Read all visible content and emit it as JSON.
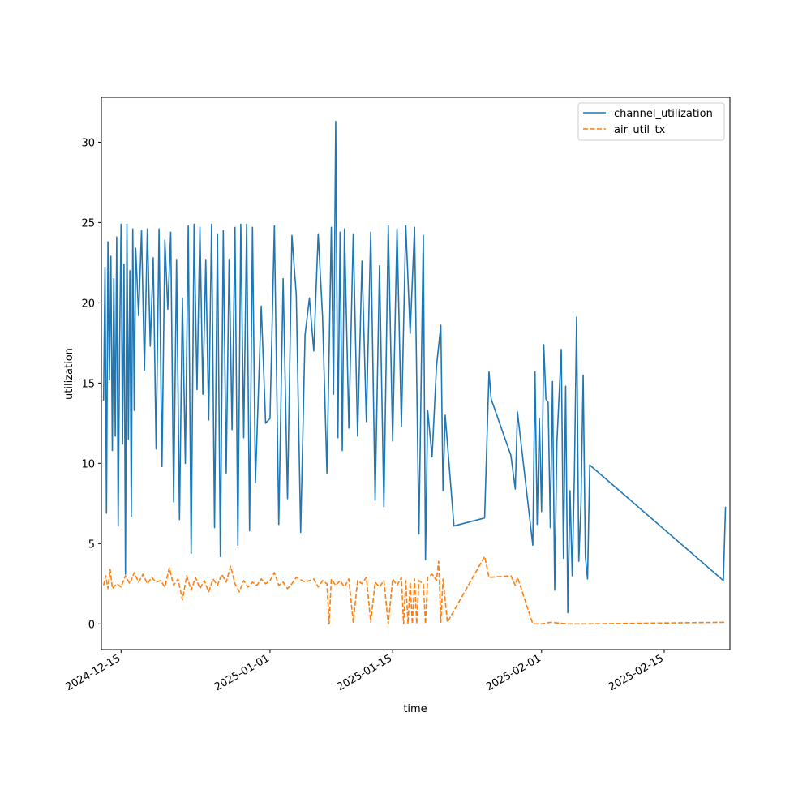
{
  "chart_data": {
    "type": "line",
    "xlabel": "time",
    "ylabel": "utilization",
    "x_axis_type": "date",
    "xlim": [
      "2024-12-12T18:00",
      "2025-02-22T12:00"
    ],
    "ylim": [
      -1.6,
      32.8
    ],
    "x_ticks": [
      "2024-12-15",
      "2025-01-01",
      "2025-01-15",
      "2025-02-01",
      "2025-02-15"
    ],
    "y_ticks": [
      0,
      5,
      10,
      15,
      20,
      25,
      30
    ],
    "grid": false,
    "legend_position": "top-right",
    "series": [
      {
        "name": "channel_utilization",
        "color": "#1f77b4",
        "style": "solid",
        "points": [
          [
            "2024-12-13T00:00",
            13.9
          ],
          [
            "2024-12-13T04:00",
            22.2
          ],
          [
            "2024-12-13T08:00",
            6.9
          ],
          [
            "2024-12-13T12:00",
            23.8
          ],
          [
            "2024-12-13T16:00",
            15.2
          ],
          [
            "2024-12-13T20:00",
            22.9
          ],
          [
            "2024-12-14T00:00",
            10.8
          ],
          [
            "2024-12-14T04:00",
            21.5
          ],
          [
            "2024-12-14T08:00",
            11.7
          ],
          [
            "2024-12-14T12:00",
            24.1
          ],
          [
            "2024-12-14T16:00",
            6.1
          ],
          [
            "2024-12-14T20:00",
            17.5
          ],
          [
            "2024-12-15T00:00",
            24.9
          ],
          [
            "2024-12-15T04:00",
            11.2
          ],
          [
            "2024-12-15T08:00",
            22.4
          ],
          [
            "2024-12-15T12:00",
            3.1
          ],
          [
            "2024-12-15T16:00",
            24.9
          ],
          [
            "2024-12-15T20:00",
            11.5
          ],
          [
            "2024-12-16T00:00",
            22.0
          ],
          [
            "2024-12-16T04:00",
            6.7
          ],
          [
            "2024-12-16T08:00",
            24.6
          ],
          [
            "2024-12-16T12:00",
            13.3
          ],
          [
            "2024-12-16T16:00",
            23.4
          ],
          [
            "2024-12-17T00:00",
            19.2
          ],
          [
            "2024-12-17T08:00",
            24.5
          ],
          [
            "2024-12-17T16:00",
            15.8
          ],
          [
            "2024-12-18T00:00",
            24.6
          ],
          [
            "2024-12-18T08:00",
            17.3
          ],
          [
            "2024-12-18T16:00",
            22.8
          ],
          [
            "2024-12-19T00:00",
            10.9
          ],
          [
            "2024-12-19T08:00",
            24.6
          ],
          [
            "2024-12-19T16:00",
            9.8
          ],
          [
            "2024-12-20T00:00",
            23.9
          ],
          [
            "2024-12-20T08:00",
            19.6
          ],
          [
            "2024-12-20T16:00",
            24.4
          ],
          [
            "2024-12-21T00:00",
            7.6
          ],
          [
            "2024-12-21T08:00",
            22.7
          ],
          [
            "2024-12-21T16:00",
            6.5
          ],
          [
            "2024-12-22T00:00",
            20.3
          ],
          [
            "2024-12-22T08:00",
            10.0
          ],
          [
            "2024-12-22T16:00",
            24.8
          ],
          [
            "2024-12-23T00:00",
            4.4
          ],
          [
            "2024-12-23T08:00",
            24.9
          ],
          [
            "2024-12-23T16:00",
            14.6
          ],
          [
            "2024-12-24T00:00",
            24.7
          ],
          [
            "2024-12-24T08:00",
            14.3
          ],
          [
            "2024-12-24T16:00",
            22.7
          ],
          [
            "2024-12-25T00:00",
            12.7
          ],
          [
            "2024-12-25T08:00",
            24.9
          ],
          [
            "2024-12-25T16:00",
            6.0
          ],
          [
            "2024-12-26T00:00",
            24.3
          ],
          [
            "2024-12-26T08:00",
            4.2
          ],
          [
            "2024-12-26T16:00",
            24.5
          ],
          [
            "2024-12-27T00:00",
            9.4
          ],
          [
            "2024-12-27T08:00",
            22.7
          ],
          [
            "2024-12-27T16:00",
            12.1
          ],
          [
            "2024-12-28T00:00",
            24.7
          ],
          [
            "2024-12-28T08:00",
            4.9
          ],
          [
            "2024-12-28T16:00",
            24.9
          ],
          [
            "2024-12-29T00:00",
            11.6
          ],
          [
            "2024-12-29T08:00",
            24.9
          ],
          [
            "2024-12-29T16:00",
            5.8
          ],
          [
            "2024-12-30T00:00",
            24.7
          ],
          [
            "2024-12-30T08:00",
            8.8
          ],
          [
            "2024-12-31T00:00",
            19.8
          ],
          [
            "2024-12-31T12:00",
            12.5
          ],
          [
            "2025-01-01T00:00",
            12.8
          ],
          [
            "2025-01-01T12:00",
            24.8
          ],
          [
            "2025-01-02T00:00",
            6.2
          ],
          [
            "2025-01-02T12:00",
            21.5
          ],
          [
            "2025-01-03T00:00",
            7.8
          ],
          [
            "2025-01-03T12:00",
            24.2
          ],
          [
            "2025-01-04T00:00",
            20.5
          ],
          [
            "2025-01-04T12:00",
            5.7
          ],
          [
            "2025-01-05T00:00",
            18.0
          ],
          [
            "2025-01-05T12:00",
            20.3
          ],
          [
            "2025-01-06T00:00",
            17.0
          ],
          [
            "2025-01-06T12:00",
            24.3
          ],
          [
            "2025-01-07T00:00",
            19.1
          ],
          [
            "2025-01-07T12:00",
            9.4
          ],
          [
            "2025-01-08T00:00",
            24.7
          ],
          [
            "2025-01-08T06:00",
            14.3
          ],
          [
            "2025-01-08T12:00",
            31.3
          ],
          [
            "2025-01-08T18:00",
            11.6
          ],
          [
            "2025-01-09T00:00",
            24.4
          ],
          [
            "2025-01-09T06:00",
            10.8
          ],
          [
            "2025-01-09T12:00",
            24.6
          ],
          [
            "2025-01-10T00:00",
            12.2
          ],
          [
            "2025-01-10T12:00",
            24.3
          ],
          [
            "2025-01-11T00:00",
            11.7
          ],
          [
            "2025-01-11T12:00",
            22.6
          ],
          [
            "2025-01-12T00:00",
            12.6
          ],
          [
            "2025-01-12T12:00",
            24.4
          ],
          [
            "2025-01-13T00:00",
            7.7
          ],
          [
            "2025-01-13T12:00",
            22.3
          ],
          [
            "2025-01-14T00:00",
            7.3
          ],
          [
            "2025-01-14T12:00",
            24.8
          ],
          [
            "2025-01-15T00:00",
            11.4
          ],
          [
            "2025-01-15T12:00",
            24.6
          ],
          [
            "2025-01-16T00:00",
            12.3
          ],
          [
            "2025-01-16T12:00",
            24.8
          ],
          [
            "2025-01-17T00:00",
            18.1
          ],
          [
            "2025-01-17T12:00",
            24.7
          ],
          [
            "2025-01-18T00:00",
            5.6
          ],
          [
            "2025-01-18T12:00",
            24.2
          ],
          [
            "2025-01-18T18:00",
            4.0
          ],
          [
            "2025-01-19T00:00",
            13.3
          ],
          [
            "2025-01-19T12:00",
            10.4
          ],
          [
            "2025-01-20T00:00",
            16.0
          ],
          [
            "2025-01-20T12:00",
            18.6
          ],
          [
            "2025-01-20T18:00",
            8.3
          ],
          [
            "2025-01-21T00:00",
            13.0
          ],
          [
            "2025-01-22T00:00",
            6.1
          ],
          [
            "2025-01-25T12:00",
            6.6
          ],
          [
            "2025-01-26T00:00",
            15.7
          ],
          [
            "2025-01-26T06:00",
            14.0
          ],
          [
            "2025-01-28T12:00",
            10.5
          ],
          [
            "2025-01-29T00:00",
            8.4
          ],
          [
            "2025-01-29T06:00",
            13.2
          ],
          [
            "2025-01-31T00:00",
            4.9
          ],
          [
            "2025-01-31T06:00",
            15.7
          ],
          [
            "2025-01-31T12:00",
            6.2
          ],
          [
            "2025-01-31T18:00",
            12.8
          ],
          [
            "2025-02-01T00:00",
            7.0
          ],
          [
            "2025-02-01T06:00",
            17.4
          ],
          [
            "2025-02-01T12:00",
            14.0
          ],
          [
            "2025-02-01T18:00",
            13.8
          ],
          [
            "2025-02-02T00:00",
            6.0
          ],
          [
            "2025-02-02T06:00",
            15.1
          ],
          [
            "2025-02-02T12:00",
            2.1
          ],
          [
            "2025-02-02T18:00",
            11.3
          ],
          [
            "2025-02-03T06:00",
            17.1
          ],
          [
            "2025-02-03T12:00",
            4.1
          ],
          [
            "2025-02-03T18:00",
            14.8
          ],
          [
            "2025-02-04T00:00",
            0.7
          ],
          [
            "2025-02-04T06:00",
            8.3
          ],
          [
            "2025-02-04T12:00",
            3.0
          ],
          [
            "2025-02-04T18:00",
            9.4
          ],
          [
            "2025-02-05T00:00",
            19.1
          ],
          [
            "2025-02-05T06:00",
            3.9
          ],
          [
            "2025-02-05T12:00",
            7.5
          ],
          [
            "2025-02-05T18:00",
            15.5
          ],
          [
            "2025-02-06T00:00",
            4.2
          ],
          [
            "2025-02-06T06:00",
            2.8
          ],
          [
            "2025-02-06T12:00",
            9.9
          ],
          [
            "2025-02-21T18:00",
            2.7
          ],
          [
            "2025-02-22T00:00",
            7.3
          ]
        ]
      },
      {
        "name": "air_util_tx",
        "color": "#ff7f0e",
        "style": "dashed",
        "points": [
          [
            "2024-12-13T00:00",
            2.4
          ],
          [
            "2024-12-13T06:00",
            3.0
          ],
          [
            "2024-12-13T12:00",
            2.2
          ],
          [
            "2024-12-13T18:00",
            3.4
          ],
          [
            "2024-12-14T00:00",
            2.2
          ],
          [
            "2024-12-14T12:00",
            2.5
          ],
          [
            "2024-12-15T00:00",
            2.3
          ],
          [
            "2024-12-15T12:00",
            3.0
          ],
          [
            "2024-12-16T00:00",
            2.5
          ],
          [
            "2024-12-16T12:00",
            3.2
          ],
          [
            "2024-12-17T00:00",
            2.6
          ],
          [
            "2024-12-17T12:00",
            3.1
          ],
          [
            "2024-12-18T00:00",
            2.5
          ],
          [
            "2024-12-18T12:00",
            2.9
          ],
          [
            "2024-12-19T00:00",
            2.6
          ],
          [
            "2024-12-19T12:00",
            2.7
          ],
          [
            "2024-12-20T00:00",
            2.3
          ],
          [
            "2024-12-20T12:00",
            3.5
          ],
          [
            "2024-12-21T00:00",
            2.4
          ],
          [
            "2024-12-21T12:00",
            2.8
          ],
          [
            "2024-12-22T00:00",
            1.5
          ],
          [
            "2024-12-22T12:00",
            3.0
          ],
          [
            "2024-12-23T00:00",
            2.1
          ],
          [
            "2024-12-23T12:00",
            2.9
          ],
          [
            "2024-12-24T00:00",
            2.2
          ],
          [
            "2024-12-24T12:00",
            2.7
          ],
          [
            "2024-12-25T00:00",
            2.0
          ],
          [
            "2024-12-25T12:00",
            2.8
          ],
          [
            "2024-12-26T00:00",
            2.4
          ],
          [
            "2024-12-26T12:00",
            3.1
          ],
          [
            "2024-12-27T00:00",
            2.6
          ],
          [
            "2024-12-27T12:00",
            3.6
          ],
          [
            "2024-12-28T00:00",
            2.5
          ],
          [
            "2024-12-28T12:00",
            2.0
          ],
          [
            "2024-12-29T00:00",
            2.7
          ],
          [
            "2024-12-29T12:00",
            2.3
          ],
          [
            "2024-12-30T00:00",
            2.6
          ],
          [
            "2024-12-30T12:00",
            2.4
          ],
          [
            "2024-12-31T00:00",
            2.8
          ],
          [
            "2024-12-31T12:00",
            2.5
          ],
          [
            "2025-01-01T00:00",
            2.7
          ],
          [
            "2025-01-01T12:00",
            3.2
          ],
          [
            "2025-01-02T00:00",
            2.4
          ],
          [
            "2025-01-02T12:00",
            2.6
          ],
          [
            "2025-01-03T00:00",
            2.2
          ],
          [
            "2025-01-03T12:00",
            2.5
          ],
          [
            "2025-01-04T00:00",
            2.9
          ],
          [
            "2025-01-05T00:00",
            2.6
          ],
          [
            "2025-01-06T00:00",
            2.8
          ],
          [
            "2025-01-06T12:00",
            2.3
          ],
          [
            "2025-01-07T00:00",
            2.7
          ],
          [
            "2025-01-07T12:00",
            2.5
          ],
          [
            "2025-01-07T18:00",
            0.0
          ],
          [
            "2025-01-08T00:00",
            2.8
          ],
          [
            "2025-01-08T12:00",
            2.4
          ],
          [
            "2025-01-09T00:00",
            2.7
          ],
          [
            "2025-01-09T12:00",
            2.3
          ],
          [
            "2025-01-10T00:00",
            2.8
          ],
          [
            "2025-01-10T12:00",
            0.1
          ],
          [
            "2025-01-11T00:00",
            2.7
          ],
          [
            "2025-01-11T12:00",
            2.5
          ],
          [
            "2025-01-12T00:00",
            2.9
          ],
          [
            "2025-01-12T12:00",
            0.1
          ],
          [
            "2025-01-13T00:00",
            2.6
          ],
          [
            "2025-01-13T12:00",
            2.3
          ],
          [
            "2025-01-14T00:00",
            2.7
          ],
          [
            "2025-01-14T12:00",
            0.0
          ],
          [
            "2025-01-15T00:00",
            2.8
          ],
          [
            "2025-01-15T12:00",
            2.4
          ],
          [
            "2025-01-16T00:00",
            2.9
          ],
          [
            "2025-01-16T06:00",
            0.0
          ],
          [
            "2025-01-16T12:00",
            2.7
          ],
          [
            "2025-01-16T18:00",
            0.0
          ],
          [
            "2025-01-17T00:00",
            2.6
          ],
          [
            "2025-01-17T06:00",
            0.0
          ],
          [
            "2025-01-17T12:00",
            2.8
          ],
          [
            "2025-01-17T18:00",
            0.0
          ],
          [
            "2025-01-18T00:00",
            2.7
          ],
          [
            "2025-01-18T12:00",
            2.5
          ],
          [
            "2025-01-18T18:00",
            0.0
          ],
          [
            "2025-01-19T00:00",
            2.9
          ],
          [
            "2025-01-19T12:00",
            3.1
          ],
          [
            "2025-01-20T00:00",
            2.7
          ],
          [
            "2025-01-20T06:00",
            3.9
          ],
          [
            "2025-01-20T12:00",
            0.1
          ],
          [
            "2025-01-20T18:00",
            2.8
          ],
          [
            "2025-01-21T06:00",
            0.1
          ],
          [
            "2025-01-25T12:00",
            4.2
          ],
          [
            "2025-01-26T00:00",
            2.9
          ],
          [
            "2025-01-28T12:00",
            3.0
          ],
          [
            "2025-01-29T00:00",
            2.4
          ],
          [
            "2025-01-29T06:00",
            2.9
          ],
          [
            "2025-01-31T00:00",
            0.0
          ],
          [
            "2025-02-01T00:00",
            0.0
          ],
          [
            "2025-02-02T00:00",
            0.1
          ],
          [
            "2025-02-04T00:00",
            0.0
          ],
          [
            "2025-02-06T00:00",
            0.0
          ],
          [
            "2025-02-22T00:00",
            0.1
          ]
        ]
      }
    ]
  }
}
